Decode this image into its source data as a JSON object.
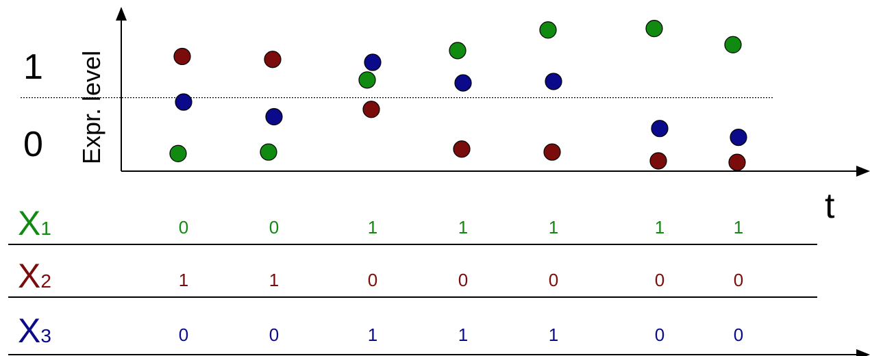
{
  "colors": {
    "x1": "#118a11",
    "x2": "#7a0c0c",
    "x3": "#0a0a8a",
    "axis": "#000000"
  },
  "plot": {
    "y_label": "Expr. level",
    "level_high": "1",
    "level_low": "0",
    "t_label": "t"
  },
  "chart_data": {
    "type": "scatter",
    "x": [
      1,
      2,
      3,
      4,
      5,
      6,
      7
    ],
    "series": [
      {
        "key": "x1",
        "values": [
          0.12,
          0.13,
          0.62,
          0.82,
          0.96,
          0.97,
          0.86
        ]
      },
      {
        "key": "x2",
        "values": [
          0.78,
          0.76,
          0.42,
          0.15,
          0.13,
          0.07,
          0.06
        ]
      },
      {
        "key": "x3",
        "values": [
          0.47,
          0.37,
          0.74,
          0.6,
          0.61,
          0.29,
          0.23
        ]
      }
    ],
    "threshold": 0.5,
    "ylim": [
      0,
      1.08
    ]
  },
  "table": {
    "rows": [
      {
        "key": "x1",
        "name": "X",
        "sub": "1",
        "values": [
          "0",
          "0",
          "1",
          "1",
          "1",
          "1",
          "1"
        ]
      },
      {
        "key": "x2",
        "name": "X",
        "sub": "2",
        "values": [
          "1",
          "1",
          "0",
          "0",
          "0",
          "0",
          "0"
        ]
      },
      {
        "key": "x3",
        "name": "X",
        "sub": "3",
        "values": [
          "0",
          "0",
          "1",
          "1",
          "1",
          "0",
          "0"
        ]
      }
    ]
  }
}
